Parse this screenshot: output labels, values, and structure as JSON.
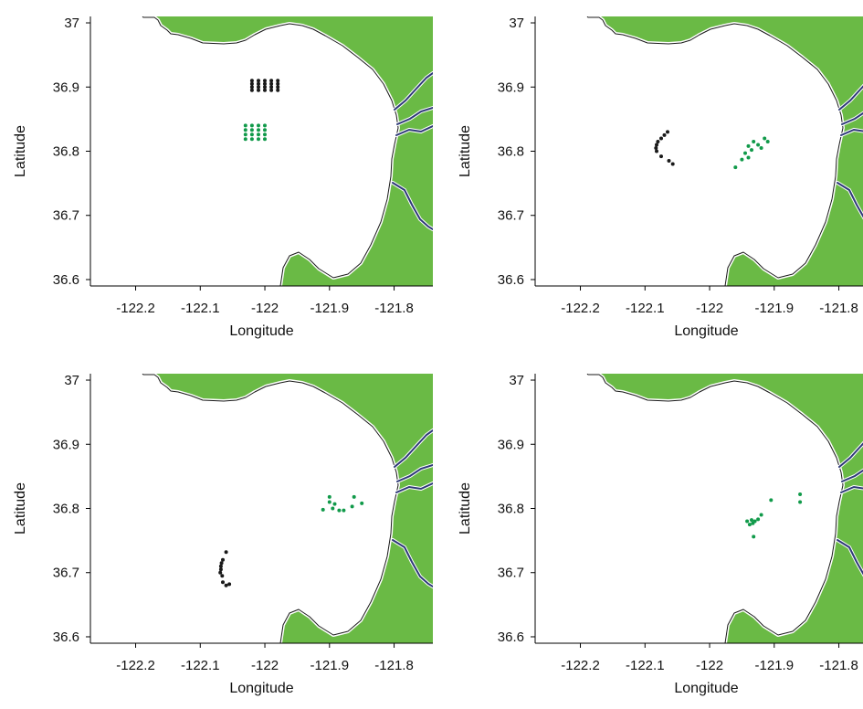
{
  "colors": {
    "land": "#6aba45",
    "coast": "#1a1a1a",
    "river": "#2e3a78",
    "series_a": "#1a1a1a",
    "series_b": "#119a4a"
  },
  "chart_data": [
    {
      "type": "scatter",
      "xlabel": "Longitude",
      "ylabel": "Latitude",
      "xlim": [
        -122.27,
        -121.74
      ],
      "ylim": [
        36.59,
        37.01
      ],
      "xticks": [
        "-122.2",
        "-122.1",
        "-122",
        "-121.9",
        "-121.8"
      ],
      "yticks": [
        "36.6",
        "36.7",
        "36.8",
        "36.9",
        "37"
      ],
      "series": [
        {
          "color": "black",
          "points": [
            [
              -122.02,
              36.91
            ],
            [
              -122.01,
              36.91
            ],
            [
              -122.0,
              36.91
            ],
            [
              -121.99,
              36.91
            ],
            [
              -121.98,
              36.91
            ],
            [
              -122.02,
              36.905
            ],
            [
              -122.01,
              36.905
            ],
            [
              -122.0,
              36.905
            ],
            [
              -121.99,
              36.905
            ],
            [
              -121.98,
              36.905
            ],
            [
              -122.02,
              36.9
            ],
            [
              -122.01,
              36.9
            ],
            [
              -122.0,
              36.9
            ],
            [
              -121.99,
              36.9
            ],
            [
              -121.98,
              36.9
            ],
            [
              -122.02,
              36.895
            ],
            [
              -122.01,
              36.895
            ],
            [
              -122.0,
              36.895
            ],
            [
              -121.99,
              36.895
            ],
            [
              -121.98,
              36.895
            ]
          ]
        },
        {
          "color": "green",
          "points": [
            [
              -122.03,
              36.84
            ],
            [
              -122.02,
              36.84
            ],
            [
              -122.01,
              36.84
            ],
            [
              -122.0,
              36.84
            ],
            [
              -122.03,
              36.833
            ],
            [
              -122.02,
              36.833
            ],
            [
              -122.01,
              36.833
            ],
            [
              -122.0,
              36.833
            ],
            [
              -122.03,
              36.826
            ],
            [
              -122.02,
              36.826
            ],
            [
              -122.01,
              36.826
            ],
            [
              -122.0,
              36.826
            ],
            [
              -122.03,
              36.819
            ],
            [
              -122.02,
              36.819
            ],
            [
              -122.01,
              36.819
            ],
            [
              -122.0,
              36.819
            ]
          ]
        }
      ]
    },
    {
      "type": "scatter",
      "xlabel": "Longitude",
      "ylabel": "Latitude",
      "xlim": [
        -122.27,
        -121.74
      ],
      "ylim": [
        36.59,
        37.01
      ],
      "xticks": [
        "-122.2",
        "-122.1",
        "-122",
        "-121.9",
        "-121.8"
      ],
      "yticks": [
        "36.6",
        "36.7",
        "36.8",
        "36.9",
        "37"
      ],
      "series": [
        {
          "color": "black",
          "points": [
            [
              -122.065,
              36.83
            ],
            [
              -122.07,
              36.825
            ],
            [
              -122.075,
              36.82
            ],
            [
              -122.08,
              36.815
            ],
            [
              -122.082,
              36.81
            ],
            [
              -122.083,
              36.805
            ],
            [
              -122.082,
              36.8
            ],
            [
              -122.075,
              36.792
            ],
            [
              -122.063,
              36.785
            ],
            [
              -122.057,
              36.78
            ]
          ]
        },
        {
          "color": "green",
          "points": [
            [
              -121.96,
              36.775
            ],
            [
              -121.95,
              36.787
            ],
            [
              -121.945,
              36.797
            ],
            [
              -121.94,
              36.79
            ],
            [
              -121.935,
              36.802
            ],
            [
              -121.932,
              36.815
            ],
            [
              -121.925,
              36.81
            ],
            [
              -121.92,
              36.805
            ],
            [
              -121.915,
              36.82
            ],
            [
              -121.91,
              36.815
            ],
            [
              -121.94,
              36.808
            ]
          ]
        }
      ]
    },
    {
      "type": "scatter",
      "xlabel": "Longitude",
      "ylabel": "Latitude",
      "xlim": [
        -122.27,
        -121.74
      ],
      "ylim": [
        36.59,
        37.01
      ],
      "xticks": [
        "-122.2",
        "-122.1",
        "-122",
        "-121.9",
        "-121.8"
      ],
      "yticks": [
        "36.6",
        "36.7",
        "36.8",
        "36.9",
        "37"
      ],
      "series": [
        {
          "color": "black",
          "points": [
            [
              -122.06,
              36.732
            ],
            [
              -122.065,
              36.72
            ],
            [
              -122.067,
              36.715
            ],
            [
              -122.068,
              36.71
            ],
            [
              -122.068,
              36.705
            ],
            [
              -122.069,
              36.7
            ],
            [
              -122.066,
              36.695
            ],
            [
              -122.065,
              36.685
            ],
            [
              -122.06,
              36.68
            ],
            [
              -122.055,
              36.682
            ]
          ]
        },
        {
          "color": "green",
          "points": [
            [
              -121.91,
              36.798
            ],
            [
              -121.9,
              36.818
            ],
            [
              -121.9,
              36.81
            ],
            [
              -121.895,
              36.8
            ],
            [
              -121.892,
              36.807
            ],
            [
              -121.885,
              36.797
            ],
            [
              -121.878,
              36.797
            ],
            [
              -121.865,
              36.803
            ],
            [
              -121.862,
              36.818
            ],
            [
              -121.85,
              36.808
            ]
          ]
        }
      ]
    },
    {
      "type": "scatter",
      "xlabel": "Longitude",
      "ylabel": "Latitude",
      "xlim": [
        -122.27,
        -121.74
      ],
      "ylim": [
        36.59,
        37.01
      ],
      "xticks": [
        "-122.2",
        "-122.1",
        "-122",
        "-121.9",
        "-121.8"
      ],
      "yticks": [
        "36.6",
        "36.7",
        "36.8",
        "36.9",
        "37"
      ],
      "series": [
        {
          "color": "black",
          "points": []
        },
        {
          "color": "green",
          "points": [
            [
              -121.905,
              36.813
            ],
            [
              -121.92,
              36.79
            ],
            [
              -121.925,
              36.783
            ],
            [
              -121.93,
              36.78
            ],
            [
              -121.933,
              36.777
            ],
            [
              -121.935,
              36.782
            ],
            [
              -121.938,
              36.775
            ],
            [
              -121.942,
              36.78
            ],
            [
              -121.932,
              36.756
            ],
            [
              -121.86,
              36.822
            ],
            [
              -121.86,
              36.81
            ]
          ]
        }
      ]
    }
  ]
}
